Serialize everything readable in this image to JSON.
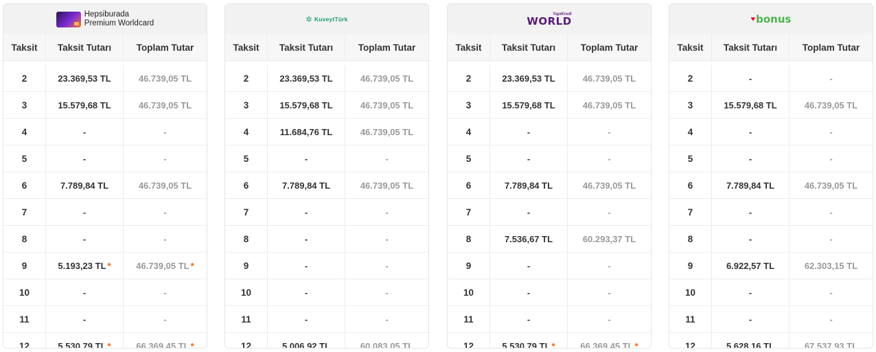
{
  "headers": {
    "taksit": "Taksit",
    "taksit_tutari": "Taksit Tutarı",
    "toplam_tutar": "Toplam Tutar"
  },
  "cards": [
    {
      "logo_text_1": "Hepsiburada",
      "logo_text_2": "Premium Worldcard",
      "rows": [
        {
          "n": "2",
          "amount": "23.369,53 TL",
          "total": "46.739,05 TL",
          "star": false
        },
        {
          "n": "3",
          "amount": "15.579,68 TL",
          "total": "46.739,05 TL",
          "star": false
        },
        {
          "n": "4",
          "amount": "-",
          "total": "-",
          "star": false
        },
        {
          "n": "5",
          "amount": "-",
          "total": "-",
          "star": false
        },
        {
          "n": "6",
          "amount": "7.789,84 TL",
          "total": "46.739,05 TL",
          "star": false
        },
        {
          "n": "7",
          "amount": "-",
          "total": "-",
          "star": false
        },
        {
          "n": "8",
          "amount": "-",
          "total": "-",
          "star": false
        },
        {
          "n": "9",
          "amount": "5.193,23 TL",
          "total": "46.739,05 TL",
          "star": true
        },
        {
          "n": "10",
          "amount": "-",
          "total": "-",
          "star": false
        },
        {
          "n": "11",
          "amount": "-",
          "total": "-",
          "star": false
        },
        {
          "n": "12",
          "amount": "5.530,79 TL",
          "total": "66.369,45 TL",
          "star": true
        }
      ]
    },
    {
      "logo_text_1": "KuveytTürk",
      "rows": [
        {
          "n": "2",
          "amount": "23.369,53 TL",
          "total": "46.739,05 TL",
          "star": false
        },
        {
          "n": "3",
          "amount": "15.579,68 TL",
          "total": "46.739,05 TL",
          "star": false
        },
        {
          "n": "4",
          "amount": "11.684,76 TL",
          "total": "46.739,05 TL",
          "star": false
        },
        {
          "n": "5",
          "amount": "-",
          "total": "-",
          "star": false
        },
        {
          "n": "6",
          "amount": "7.789,84 TL",
          "total": "46.739,05 TL",
          "star": false
        },
        {
          "n": "7",
          "amount": "-",
          "total": "-",
          "star": false
        },
        {
          "n": "8",
          "amount": "-",
          "total": "-",
          "star": false
        },
        {
          "n": "9",
          "amount": "-",
          "total": "-",
          "star": false
        },
        {
          "n": "10",
          "amount": "-",
          "total": "-",
          "star": false
        },
        {
          "n": "11",
          "amount": "-",
          "total": "-",
          "star": false
        },
        {
          "n": "12",
          "amount": "5.006,92 TL",
          "total": "60.083,05 TL",
          "star": false
        }
      ]
    },
    {
      "logo_text_1": "YapıKredi",
      "logo_text_2": "WORLD",
      "rows": [
        {
          "n": "2",
          "amount": "23.369,53 TL",
          "total": "46.739,05 TL",
          "star": false
        },
        {
          "n": "3",
          "amount": "15.579,68 TL",
          "total": "46.739,05 TL",
          "star": false
        },
        {
          "n": "4",
          "amount": "-",
          "total": "-",
          "star": false
        },
        {
          "n": "5",
          "amount": "-",
          "total": "-",
          "star": false
        },
        {
          "n": "6",
          "amount": "7.789,84 TL",
          "total": "46.739,05 TL",
          "star": false
        },
        {
          "n": "7",
          "amount": "-",
          "total": "-",
          "star": false
        },
        {
          "n": "8",
          "amount": "7.536,67 TL",
          "total": "60.293,37 TL",
          "star": false
        },
        {
          "n": "9",
          "amount": "-",
          "total": "-",
          "star": false
        },
        {
          "n": "10",
          "amount": "-",
          "total": "-",
          "star": false
        },
        {
          "n": "11",
          "amount": "-",
          "total": "-",
          "star": false
        },
        {
          "n": "12",
          "amount": "5.530,79 TL",
          "total": "66.369,45 TL",
          "star": true
        }
      ]
    },
    {
      "logo_text_1": "bonus",
      "rows": [
        {
          "n": "2",
          "amount": "-",
          "total": "-",
          "star": false
        },
        {
          "n": "3",
          "amount": "15.579,68 TL",
          "total": "46.739,05 TL",
          "star": false
        },
        {
          "n": "4",
          "amount": "-",
          "total": "-",
          "star": false
        },
        {
          "n": "5",
          "amount": "-",
          "total": "-",
          "star": false
        },
        {
          "n": "6",
          "amount": "7.789,84 TL",
          "total": "46.739,05 TL",
          "star": false
        },
        {
          "n": "7",
          "amount": "-",
          "total": "-",
          "star": false
        },
        {
          "n": "8",
          "amount": "-",
          "total": "-",
          "star": false
        },
        {
          "n": "9",
          "amount": "6.922,57 TL",
          "total": "62.303,15 TL",
          "star": false
        },
        {
          "n": "10",
          "amount": "-",
          "total": "-",
          "star": false
        },
        {
          "n": "11",
          "amount": "-",
          "total": "-",
          "star": false
        },
        {
          "n": "12",
          "amount": "5.628,16 TL",
          "total": "67.537,93 TL",
          "star": false
        }
      ]
    }
  ],
  "star_symbol": "*",
  "colors": {
    "accent": "#ff6000",
    "muted": "#9a9a9a",
    "header_bg": "#f2f2f2"
  }
}
